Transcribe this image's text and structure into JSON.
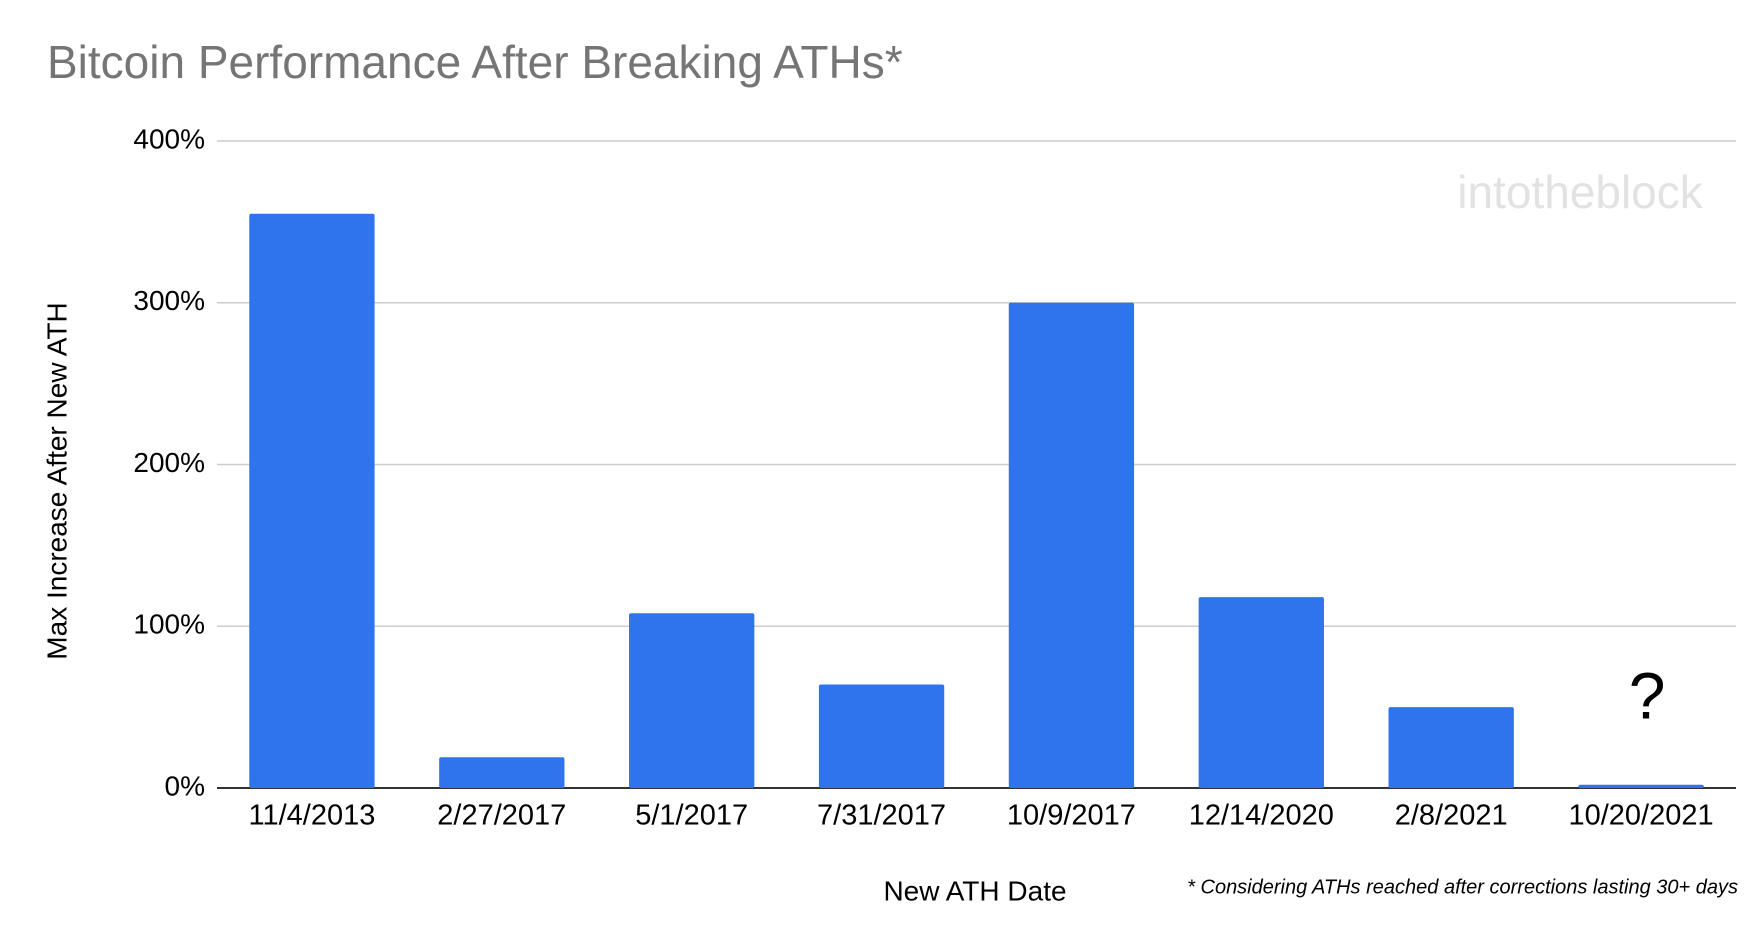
{
  "chart_data": {
    "type": "bar",
    "title": "Bitcoin Performance After Breaking ATHs*",
    "x_label": "New ATH Date",
    "y_label": "Max Increase After New ATH",
    "footnote": "* Considering ATHs reached after corrections lasting 30+ days",
    "annotation": "?",
    "watermark": "intotheblock",
    "categories": [
      "11/4/2013",
      "2/27/2017",
      "5/1/2017",
      "7/31/2017",
      "10/9/2017",
      "12/14/2020",
      "2/8/2021",
      "10/20/2021"
    ],
    "values": [
      355,
      19,
      108,
      64,
      300,
      118,
      50,
      2
    ],
    "color": "#2f74ec",
    "ylim": [
      0,
      400
    ],
    "yticks": [
      {
        "value": 0,
        "label": "0%"
      },
      {
        "value": 100,
        "label": "100%"
      },
      {
        "value": 200,
        "label": "200%"
      },
      {
        "value": 300,
        "label": "300%"
      },
      {
        "value": 400,
        "label": "400%"
      }
    ],
    "grid": true
  }
}
